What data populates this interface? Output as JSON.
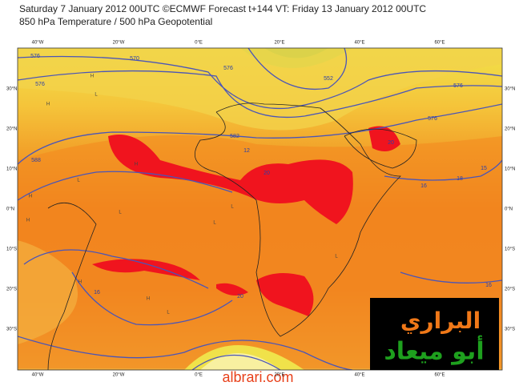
{
  "header": {
    "line1": "Saturday 7 January 2012 00UTC ©ECMWF Forecast t+144 VT: Friday 13 January 2012 00UTC",
    "line2": "850 hPa Temperature / 500 hPa Geopotential"
  },
  "map": {
    "lon_labels": [
      "40°W",
      "20°W",
      "0°E",
      "20°E",
      "40°E",
      "60°E"
    ],
    "lat_labels": [
      "30°N",
      "20°N",
      "10°N",
      "0°N",
      "10°S",
      "20°S",
      "30°S"
    ],
    "contour_labels": [
      "576",
      "570",
      "576",
      "582",
      "588",
      "12",
      "576",
      "552",
      "576",
      "20",
      "20",
      "16",
      "18",
      "15",
      "16",
      "20",
      "16",
      "576"
    ],
    "pressure_marks": [
      "H",
      "L",
      "H",
      "L",
      "H",
      "L",
      "H",
      "L",
      "H",
      "L",
      "H",
      "H",
      "L",
      "L"
    ]
  },
  "watermark": {
    "arabic_top": "البراري",
    "arabic_bottom": "أبو ميعاد",
    "site": "albrari.com"
  }
}
